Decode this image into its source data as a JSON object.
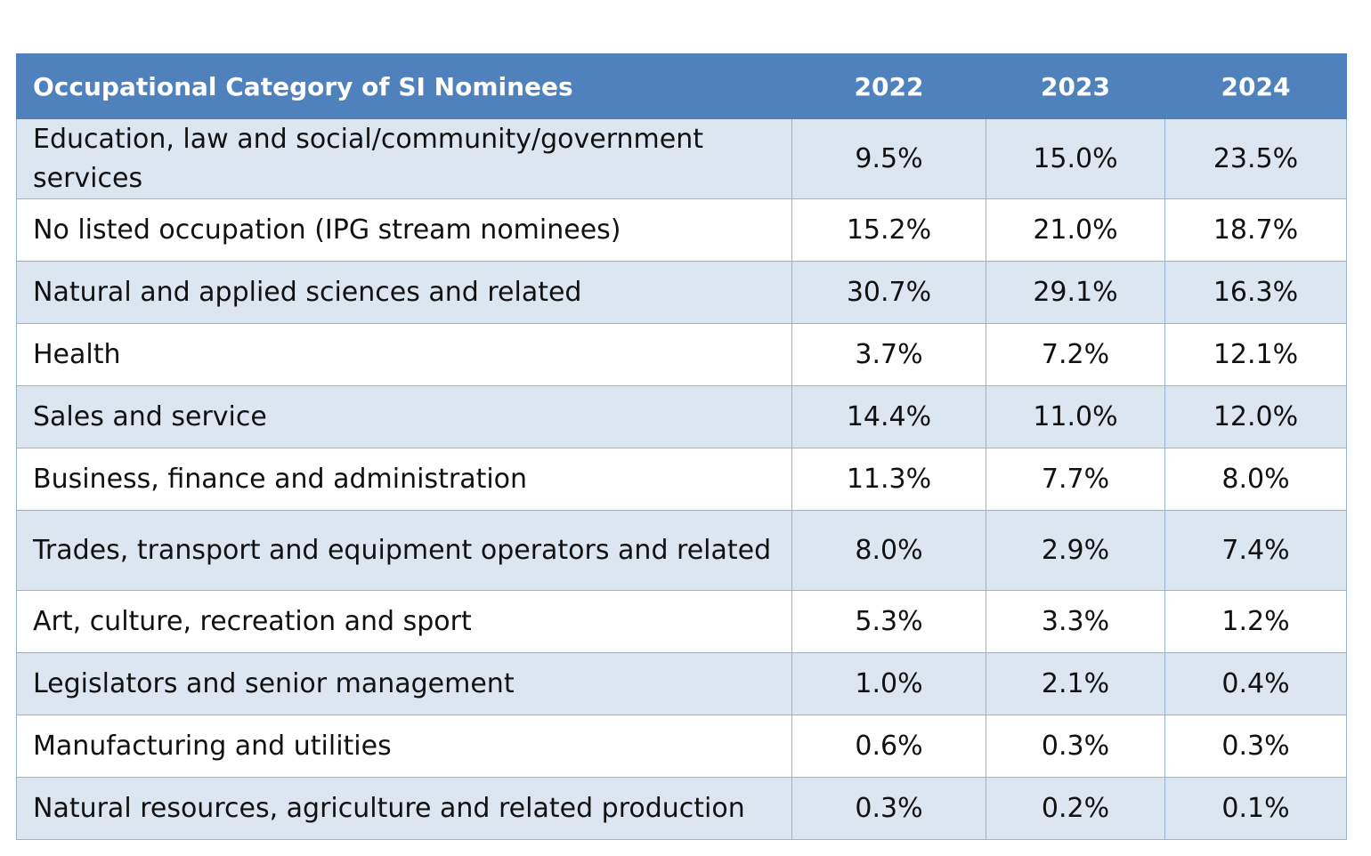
{
  "table": {
    "headers": [
      "Occupational Category of SI Nominees",
      "2022",
      "2023",
      "2024"
    ],
    "rows": [
      {
        "category": "Education, law and social/community/government services",
        "y2022": "9.5%",
        "y2023": "15.0%",
        "y2024": "23.5%"
      },
      {
        "category": "No listed occupation (IPG stream nominees)",
        "y2022": "15.2%",
        "y2023": "21.0%",
        "y2024": "18.7%"
      },
      {
        "category": "Natural and applied sciences and related",
        "y2022": "30.7%",
        "y2023": "29.1%",
        "y2024": "16.3%"
      },
      {
        "category": "Health",
        "y2022": "3.7%",
        "y2023": "7.2%",
        "y2024": "12.1%"
      },
      {
        "category": "Sales and service",
        "y2022": "14.4%",
        "y2023": "11.0%",
        "y2024": "12.0%"
      },
      {
        "category": "Business, finance and administration",
        "y2022": "11.3%",
        "y2023": "7.7%",
        "y2024": "8.0%"
      },
      {
        "category": "Trades, transport and equipment operators and related",
        "y2022": "8.0%",
        "y2023": "2.9%",
        "y2024": "7.4%"
      },
      {
        "category": "Art, culture, recreation and sport",
        "y2022": "5.3%",
        "y2023": "3.3%",
        "y2024": "1.2%"
      },
      {
        "category": "Legislators and senior management",
        "y2022": "1.0%",
        "y2023": "2.1%",
        "y2024": "0.4%"
      },
      {
        "category": "Manufacturing and utilities",
        "y2022": "0.6%",
        "y2023": "0.3%",
        "y2024": "0.3%"
      },
      {
        "category": "Natural resources, agriculture and related production",
        "y2022": "0.3%",
        "y2023": "0.2%",
        "y2024": "0.1%"
      }
    ]
  },
  "colors": {
    "header_bg": "#4f81bd",
    "band_bg": "#dce6f1",
    "border": "#95b3d7"
  }
}
